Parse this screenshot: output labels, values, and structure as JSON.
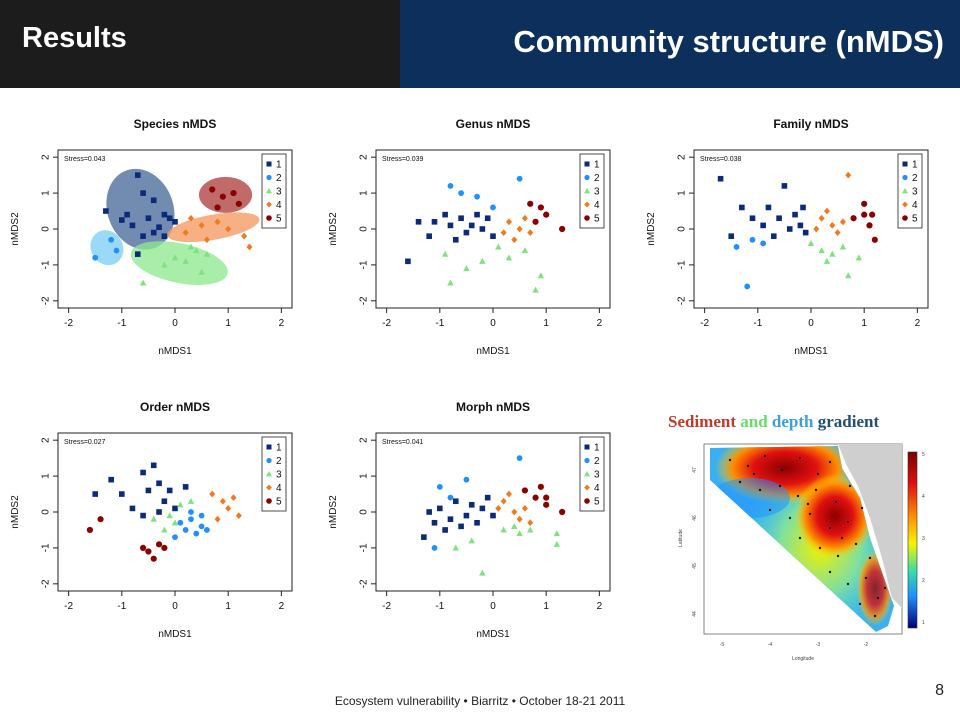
{
  "header": {
    "left_title": "Results",
    "right_title": "Community structure (nMDS)"
  },
  "legend_items": [
    "1",
    "2",
    "3",
    "4",
    "5"
  ],
  "group_colors": [
    "#0b2a7a",
    "#1e90ff",
    "#7ee37e",
    "#f07a20",
    "#8b0000"
  ],
  "ellipse_colors": [
    "#4a6a9a",
    "#7fd0f5",
    "#8fe88f",
    "#f59a60",
    "#b04040"
  ],
  "chart_data": [
    {
      "type": "scatter",
      "title": "Species nMDS",
      "stress": "Stress=0.043",
      "xlabel": "nMDS1",
      "ylabel": "nMDS2",
      "xlim": [
        -2.2,
        2.2
      ],
      "ylim": [
        -2.2,
        2.2
      ],
      "xticks": [
        "-2",
        "-1",
        "0",
        "1",
        "2"
      ],
      "yticks": [
        "-2",
        "-1",
        "0",
        "1",
        "2"
      ],
      "ellipses": [
        {
          "group": 1,
          "cx": -0.65,
          "cy": 0.55,
          "rx": 0.62,
          "ry": 1.15,
          "angle": -20
        },
        {
          "group": 2,
          "cx": -1.28,
          "cy": -0.52,
          "rx": 0.3,
          "ry": 0.5,
          "angle": -30
        },
        {
          "group": 3,
          "cx": 0.08,
          "cy": -0.95,
          "rx": 0.93,
          "ry": 0.55,
          "angle": 12
        },
        {
          "group": 4,
          "cx": 0.72,
          "cy": 0.05,
          "rx": 0.88,
          "ry": 0.35,
          "angle": -10
        },
        {
          "group": 5,
          "cx": 0.95,
          "cy": 0.95,
          "rx": 0.5,
          "ry": 0.5,
          "angle": 0
        }
      ],
      "points": [
        {
          "g": 1,
          "x": -0.7,
          "y": 1.5
        },
        {
          "g": 1,
          "x": -0.6,
          "y": 1.0
        },
        {
          "g": 1,
          "x": -0.4,
          "y": 0.8
        },
        {
          "g": 1,
          "x": -1.3,
          "y": 0.5
        },
        {
          "g": 1,
          "x": -0.9,
          "y": 0.4
        },
        {
          "g": 1,
          "x": -0.5,
          "y": 0.3
        },
        {
          "g": 1,
          "x": -0.2,
          "y": 0.4
        },
        {
          "g": 1,
          "x": -0.8,
          "y": 0.1
        },
        {
          "g": 1,
          "x": -0.3,
          "y": 0.05
        },
        {
          "g": 1,
          "x": -0.1,
          "y": 0.3
        },
        {
          "g": 1,
          "x": -0.6,
          "y": -0.2
        },
        {
          "g": 1,
          "x": -0.4,
          "y": -0.1
        },
        {
          "g": 1,
          "x": 0.0,
          "y": 0.2
        },
        {
          "g": 1,
          "x": -0.7,
          "y": -0.7
        },
        {
          "g": 1,
          "x": -1.0,
          "y": 0.25
        },
        {
          "g": 1,
          "x": -0.2,
          "y": -0.2
        },
        {
          "g": 2,
          "x": -1.5,
          "y": -0.8
        },
        {
          "g": 2,
          "x": -1.2,
          "y": -0.3
        },
        {
          "g": 2,
          "x": -1.1,
          "y": -0.6
        },
        {
          "g": 3,
          "x": 0.4,
          "y": -0.6
        },
        {
          "g": 3,
          "x": 0.6,
          "y": -0.7
        },
        {
          "g": 3,
          "x": 0.2,
          "y": -0.9
        },
        {
          "g": 3,
          "x": -0.2,
          "y": -1.0
        },
        {
          "g": 3,
          "x": 0.5,
          "y": -1.2
        },
        {
          "g": 3,
          "x": 0.0,
          "y": -0.8
        },
        {
          "g": 3,
          "x": -0.6,
          "y": -1.5
        },
        {
          "g": 3,
          "x": 0.3,
          "y": -0.5
        },
        {
          "g": 4,
          "x": 0.3,
          "y": 0.3
        },
        {
          "g": 4,
          "x": 0.5,
          "y": 0.1
        },
        {
          "g": 4,
          "x": 0.8,
          "y": 0.2
        },
        {
          "g": 4,
          "x": 1.0,
          "y": 0.0
        },
        {
          "g": 4,
          "x": 0.6,
          "y": -0.3
        },
        {
          "g": 4,
          "x": 1.3,
          "y": -0.2
        },
        {
          "g": 4,
          "x": 1.4,
          "y": -0.5
        },
        {
          "g": 4,
          "x": 0.2,
          "y": -0.1
        },
        {
          "g": 5,
          "x": 0.7,
          "y": 1.1
        },
        {
          "g": 5,
          "x": 0.9,
          "y": 0.9
        },
        {
          "g": 5,
          "x": 1.1,
          "y": 1.0
        },
        {
          "g": 5,
          "x": 0.8,
          "y": 0.6
        },
        {
          "g": 5,
          "x": 1.2,
          "y": 0.7
        }
      ]
    },
    {
      "type": "scatter",
      "title": "Genus nMDS",
      "stress": "Stress=0.039",
      "xlabel": "nMDS1",
      "ylabel": "nMDS2",
      "xlim": [
        -2.2,
        2.2
      ],
      "ylim": [
        -2.2,
        2.2
      ],
      "xticks": [
        "-2",
        "-1",
        "0",
        "1",
        "2"
      ],
      "yticks": [
        "-2",
        "-1",
        "0",
        "1",
        "2"
      ],
      "points": [
        {
          "g": 1,
          "x": -1.6,
          "y": -0.9
        },
        {
          "g": 1,
          "x": -1.4,
          "y": 0.2
        },
        {
          "g": 1,
          "x": -1.1,
          "y": 0.2
        },
        {
          "g": 1,
          "x": -0.9,
          "y": 0.4
        },
        {
          "g": 1,
          "x": -0.8,
          "y": 0.1
        },
        {
          "g": 1,
          "x": -0.6,
          "y": 0.3
        },
        {
          "g": 1,
          "x": -0.5,
          "y": -0.1
        },
        {
          "g": 1,
          "x": -0.3,
          "y": 0.4
        },
        {
          "g": 1,
          "x": -0.2,
          "y": 0.0
        },
        {
          "g": 1,
          "x": -0.1,
          "y": 0.3
        },
        {
          "g": 1,
          "x": -0.7,
          "y": -0.3
        },
        {
          "g": 1,
          "x": -1.2,
          "y": -0.2
        },
        {
          "g": 1,
          "x": 0.0,
          "y": -0.2
        },
        {
          "g": 1,
          "x": -0.4,
          "y": 0.1
        },
        {
          "g": 2,
          "x": -0.8,
          "y": 1.2
        },
        {
          "g": 2,
          "x": -0.6,
          "y": 1.0
        },
        {
          "g": 2,
          "x": 0.5,
          "y": 1.4
        },
        {
          "g": 2,
          "x": 0.0,
          "y": 0.6
        },
        {
          "g": 2,
          "x": -0.3,
          "y": 0.9
        },
        {
          "g": 3,
          "x": -0.9,
          "y": -0.7
        },
        {
          "g": 3,
          "x": -0.5,
          "y": -1.1
        },
        {
          "g": 3,
          "x": -0.2,
          "y": -0.9
        },
        {
          "g": 3,
          "x": 0.3,
          "y": -0.8
        },
        {
          "g": 3,
          "x": 0.6,
          "y": -0.6
        },
        {
          "g": 3,
          "x": 0.9,
          "y": -1.3
        },
        {
          "g": 3,
          "x": -0.8,
          "y": -1.5
        },
        {
          "g": 3,
          "x": 0.8,
          "y": -1.7
        },
        {
          "g": 3,
          "x": 0.1,
          "y": -0.5
        },
        {
          "g": 4,
          "x": 0.3,
          "y": 0.2
        },
        {
          "g": 4,
          "x": 0.5,
          "y": 0.0
        },
        {
          "g": 4,
          "x": 0.6,
          "y": 0.3
        },
        {
          "g": 4,
          "x": 0.4,
          "y": -0.3
        },
        {
          "g": 4,
          "x": 0.2,
          "y": -0.1
        },
        {
          "g": 4,
          "x": 0.7,
          "y": -0.1
        },
        {
          "g": 5,
          "x": 0.7,
          "y": 0.7
        },
        {
          "g": 5,
          "x": 0.9,
          "y": 0.6
        },
        {
          "g": 5,
          "x": 1.0,
          "y": 0.4
        },
        {
          "g": 5,
          "x": 0.8,
          "y": 0.2
        },
        {
          "g": 5,
          "x": 1.3,
          "y": 0.0
        },
        {
          "g": 5,
          "x": 1.7,
          "y": 0.7
        }
      ]
    },
    {
      "type": "scatter",
      "title": "Family nMDS",
      "stress": "Stress=0.038",
      "xlabel": "nMDS1",
      "ylabel": "nMDS2",
      "xlim": [
        -2.2,
        2.2
      ],
      "ylim": [
        -2.2,
        2.2
      ],
      "xticks": [
        "-2",
        "-1",
        "0",
        "1",
        "2"
      ],
      "yticks": [
        "-2",
        "-1",
        "0",
        "1",
        "2"
      ],
      "points": [
        {
          "g": 1,
          "x": -1.7,
          "y": 1.4
        },
        {
          "g": 1,
          "x": -1.3,
          "y": 0.6
        },
        {
          "g": 1,
          "x": -1.1,
          "y": 0.3
        },
        {
          "g": 1,
          "x": -0.9,
          "y": 0.1
        },
        {
          "g": 1,
          "x": -0.8,
          "y": 0.6
        },
        {
          "g": 1,
          "x": -0.6,
          "y": 0.3
        },
        {
          "g": 1,
          "x": -0.4,
          "y": 0.0
        },
        {
          "g": 1,
          "x": -0.3,
          "y": 0.4
        },
        {
          "g": 1,
          "x": -0.2,
          "y": 0.1
        },
        {
          "g": 1,
          "x": -0.1,
          "y": -0.1
        },
        {
          "g": 1,
          "x": -0.5,
          "y": 1.2
        },
        {
          "g": 1,
          "x": -1.5,
          "y": -0.2
        },
        {
          "g": 1,
          "x": -0.7,
          "y": -0.2
        },
        {
          "g": 1,
          "x": -0.15,
          "y": 0.6
        },
        {
          "g": 2,
          "x": -1.4,
          "y": -0.5
        },
        {
          "g": 2,
          "x": -1.1,
          "y": -0.3
        },
        {
          "g": 2,
          "x": -1.2,
          "y": -1.6
        },
        {
          "g": 2,
          "x": -0.9,
          "y": -0.4
        },
        {
          "g": 3,
          "x": 0.2,
          "y": -0.6
        },
        {
          "g": 3,
          "x": 0.4,
          "y": -0.7
        },
        {
          "g": 3,
          "x": 0.6,
          "y": -0.5
        },
        {
          "g": 3,
          "x": 0.9,
          "y": -0.8
        },
        {
          "g": 3,
          "x": 0.7,
          "y": -1.3
        },
        {
          "g": 3,
          "x": 0.0,
          "y": -0.4
        },
        {
          "g": 3,
          "x": 0.3,
          "y": -0.9
        },
        {
          "g": 4,
          "x": 0.2,
          "y": 0.3
        },
        {
          "g": 4,
          "x": 0.4,
          "y": 0.1
        },
        {
          "g": 4,
          "x": 0.5,
          "y": -0.1
        },
        {
          "g": 4,
          "x": 0.3,
          "y": 0.5
        },
        {
          "g": 4,
          "x": 0.7,
          "y": 1.5
        },
        {
          "g": 4,
          "x": 0.6,
          "y": 0.2
        },
        {
          "g": 4,
          "x": 0.1,
          "y": 0.0
        },
        {
          "g": 5,
          "x": 0.8,
          "y": 0.3
        },
        {
          "g": 5,
          "x": 1.0,
          "y": 0.4
        },
        {
          "g": 5,
          "x": 1.1,
          "y": 0.1
        },
        {
          "g": 5,
          "x": 1.2,
          "y": -0.3
        },
        {
          "g": 5,
          "x": 1.0,
          "y": 0.7
        },
        {
          "g": 5,
          "x": 1.15,
          "y": 0.4
        }
      ]
    },
    {
      "type": "scatter",
      "title": "Order nMDS",
      "stress": "Stress=0.027",
      "xlabel": "nMDS1",
      "ylabel": "nMDS2",
      "xlim": [
        -2.2,
        2.2
      ],
      "ylim": [
        -2.2,
        2.2
      ],
      "xticks": [
        "-2",
        "-1",
        "0",
        "1",
        "2"
      ],
      "yticks": [
        "-2",
        "-1",
        "0",
        "1",
        "2"
      ],
      "points": [
        {
          "g": 1,
          "x": -1.5,
          "y": 0.5
        },
        {
          "g": 1,
          "x": -1.2,
          "y": 0.9
        },
        {
          "g": 1,
          "x": -1.0,
          "y": 0.5
        },
        {
          "g": 1,
          "x": -0.8,
          "y": 0.1
        },
        {
          "g": 1,
          "x": -0.6,
          "y": 1.1
        },
        {
          "g": 1,
          "x": -0.4,
          "y": 1.3
        },
        {
          "g": 1,
          "x": -0.3,
          "y": 0.8
        },
        {
          "g": 1,
          "x": -0.2,
          "y": 0.3
        },
        {
          "g": 1,
          "x": 0.0,
          "y": 0.1
        },
        {
          "g": 1,
          "x": -0.1,
          "y": 0.6
        },
        {
          "g": 1,
          "x": -0.5,
          "y": 0.6
        },
        {
          "g": 1,
          "x": 0.2,
          "y": 0.7
        },
        {
          "g": 1,
          "x": -0.3,
          "y": 0.0
        },
        {
          "g": 1,
          "x": -0.6,
          "y": -0.1
        },
        {
          "g": 2,
          "x": 0.3,
          "y": -0.2
        },
        {
          "g": 2,
          "x": 0.5,
          "y": -0.4
        },
        {
          "g": 2,
          "x": 0.2,
          "y": -0.5
        },
        {
          "g": 2,
          "x": 0.4,
          "y": -0.6
        },
        {
          "g": 2,
          "x": 0.6,
          "y": -0.5
        },
        {
          "g": 2,
          "x": 0.1,
          "y": -0.3
        },
        {
          "g": 2,
          "x": 0.5,
          "y": -0.1
        },
        {
          "g": 2,
          "x": 0.3,
          "y": 0.0
        },
        {
          "g": 2,
          "x": 0.0,
          "y": -0.7
        },
        {
          "g": 3,
          "x": -0.4,
          "y": -0.2
        },
        {
          "g": 3,
          "x": -0.1,
          "y": -0.1
        },
        {
          "g": 3,
          "x": 0.1,
          "y": 0.2
        },
        {
          "g": 3,
          "x": 0.3,
          "y": 0.3
        },
        {
          "g": 3,
          "x": -0.2,
          "y": -0.5
        },
        {
          "g": 3,
          "x": 0.0,
          "y": -0.3
        },
        {
          "g": 4,
          "x": 0.7,
          "y": 0.5
        },
        {
          "g": 4,
          "x": 0.9,
          "y": 0.3
        },
        {
          "g": 4,
          "x": 1.0,
          "y": 0.1
        },
        {
          "g": 4,
          "x": 1.2,
          "y": -0.1
        },
        {
          "g": 4,
          "x": 0.8,
          "y": -0.2
        },
        {
          "g": 4,
          "x": 1.1,
          "y": 0.4
        },
        {
          "g": 5,
          "x": -1.6,
          "y": -0.5
        },
        {
          "g": 5,
          "x": -1.4,
          "y": -0.2
        },
        {
          "g": 5,
          "x": -0.5,
          "y": -1.1
        },
        {
          "g": 5,
          "x": -0.3,
          "y": -0.9
        },
        {
          "g": 5,
          "x": -0.4,
          "y": -1.3
        },
        {
          "g": 5,
          "x": -0.6,
          "y": -1.0
        },
        {
          "g": 5,
          "x": -0.2,
          "y": -1.0
        }
      ]
    },
    {
      "type": "scatter",
      "title": "Morph nMDS",
      "stress": "Stress=0.041",
      "xlabel": "nMDS1",
      "ylabel": "nMDS2",
      "xlim": [
        -2.2,
        2.2
      ],
      "ylim": [
        -2.2,
        2.2
      ],
      "xticks": [
        "-2",
        "-1",
        "0",
        "1",
        "2"
      ],
      "yticks": [
        "-2",
        "-1",
        "0",
        "1",
        "2"
      ],
      "points": [
        {
          "g": 1,
          "x": -1.3,
          "y": -0.7
        },
        {
          "g": 1,
          "x": -1.1,
          "y": -0.3
        },
        {
          "g": 1,
          "x": -1.0,
          "y": 0.1
        },
        {
          "g": 1,
          "x": -0.8,
          "y": -0.2
        },
        {
          "g": 1,
          "x": -0.7,
          "y": 0.3
        },
        {
          "g": 1,
          "x": -0.5,
          "y": -0.1
        },
        {
          "g": 1,
          "x": -0.4,
          "y": 0.2
        },
        {
          "g": 1,
          "x": -0.3,
          "y": -0.3
        },
        {
          "g": 1,
          "x": -0.2,
          "y": 0.1
        },
        {
          "g": 1,
          "x": -0.1,
          "y": 0.4
        },
        {
          "g": 1,
          "x": -0.9,
          "y": -0.5
        },
        {
          "g": 1,
          "x": -0.6,
          "y": -0.4
        },
        {
          "g": 1,
          "x": 0.0,
          "y": -0.1
        },
        {
          "g": 1,
          "x": -1.2,
          "y": 0.0
        },
        {
          "g": 2,
          "x": -1.0,
          "y": 0.7
        },
        {
          "g": 2,
          "x": -0.8,
          "y": 0.4
        },
        {
          "g": 2,
          "x": -0.5,
          "y": 0.9
        },
        {
          "g": 2,
          "x": 0.5,
          "y": 1.5
        },
        {
          "g": 2,
          "x": -1.1,
          "y": -1.0
        },
        {
          "g": 3,
          "x": -0.7,
          "y": -1.0
        },
        {
          "g": 3,
          "x": -0.4,
          "y": -0.8
        },
        {
          "g": 3,
          "x": 0.2,
          "y": -0.5
        },
        {
          "g": 3,
          "x": 0.5,
          "y": -0.6
        },
        {
          "g": 3,
          "x": 0.7,
          "y": -0.5
        },
        {
          "g": 3,
          "x": 1.2,
          "y": -0.6
        },
        {
          "g": 3,
          "x": -0.2,
          "y": -1.7
        },
        {
          "g": 3,
          "x": 1.2,
          "y": -0.9
        },
        {
          "g": 3,
          "x": 0.4,
          "y": -0.4
        },
        {
          "g": 4,
          "x": 0.2,
          "y": 0.3
        },
        {
          "g": 4,
          "x": 0.4,
          "y": 0.0
        },
        {
          "g": 4,
          "x": 0.6,
          "y": 0.1
        },
        {
          "g": 4,
          "x": 0.5,
          "y": -0.2
        },
        {
          "g": 4,
          "x": 0.3,
          "y": 0.5
        },
        {
          "g": 4,
          "x": 0.7,
          "y": -0.3
        },
        {
          "g": 4,
          "x": 0.1,
          "y": 0.1
        },
        {
          "g": 5,
          "x": 0.6,
          "y": 0.6
        },
        {
          "g": 5,
          "x": 0.8,
          "y": 0.4
        },
        {
          "g": 5,
          "x": 0.9,
          "y": 0.7
        },
        {
          "g": 5,
          "x": 1.0,
          "y": 0.2
        },
        {
          "g": 5,
          "x": 1.0,
          "y": 0.4
        },
        {
          "g": 5,
          "x": 1.3,
          "y": 0.0
        }
      ]
    }
  ],
  "gradient_title": {
    "w1": "Sediment",
    "w2": "and",
    "w3": "depth",
    "w4": "gradient"
  },
  "map": {
    "yticks": [
      "47",
      "46",
      "45",
      "44"
    ],
    "xticks": [
      "-5",
      "-4",
      "-3",
      "-2"
    ],
    "colorbar_ticks": [
      "5",
      "4",
      "3",
      "2",
      "1"
    ],
    "xlabel": "Longitude",
    "ylabel": "Latitude"
  },
  "footer": "Ecosystem vulnerability  • Biarritz • October 18-21 2011",
  "page_number": "8"
}
